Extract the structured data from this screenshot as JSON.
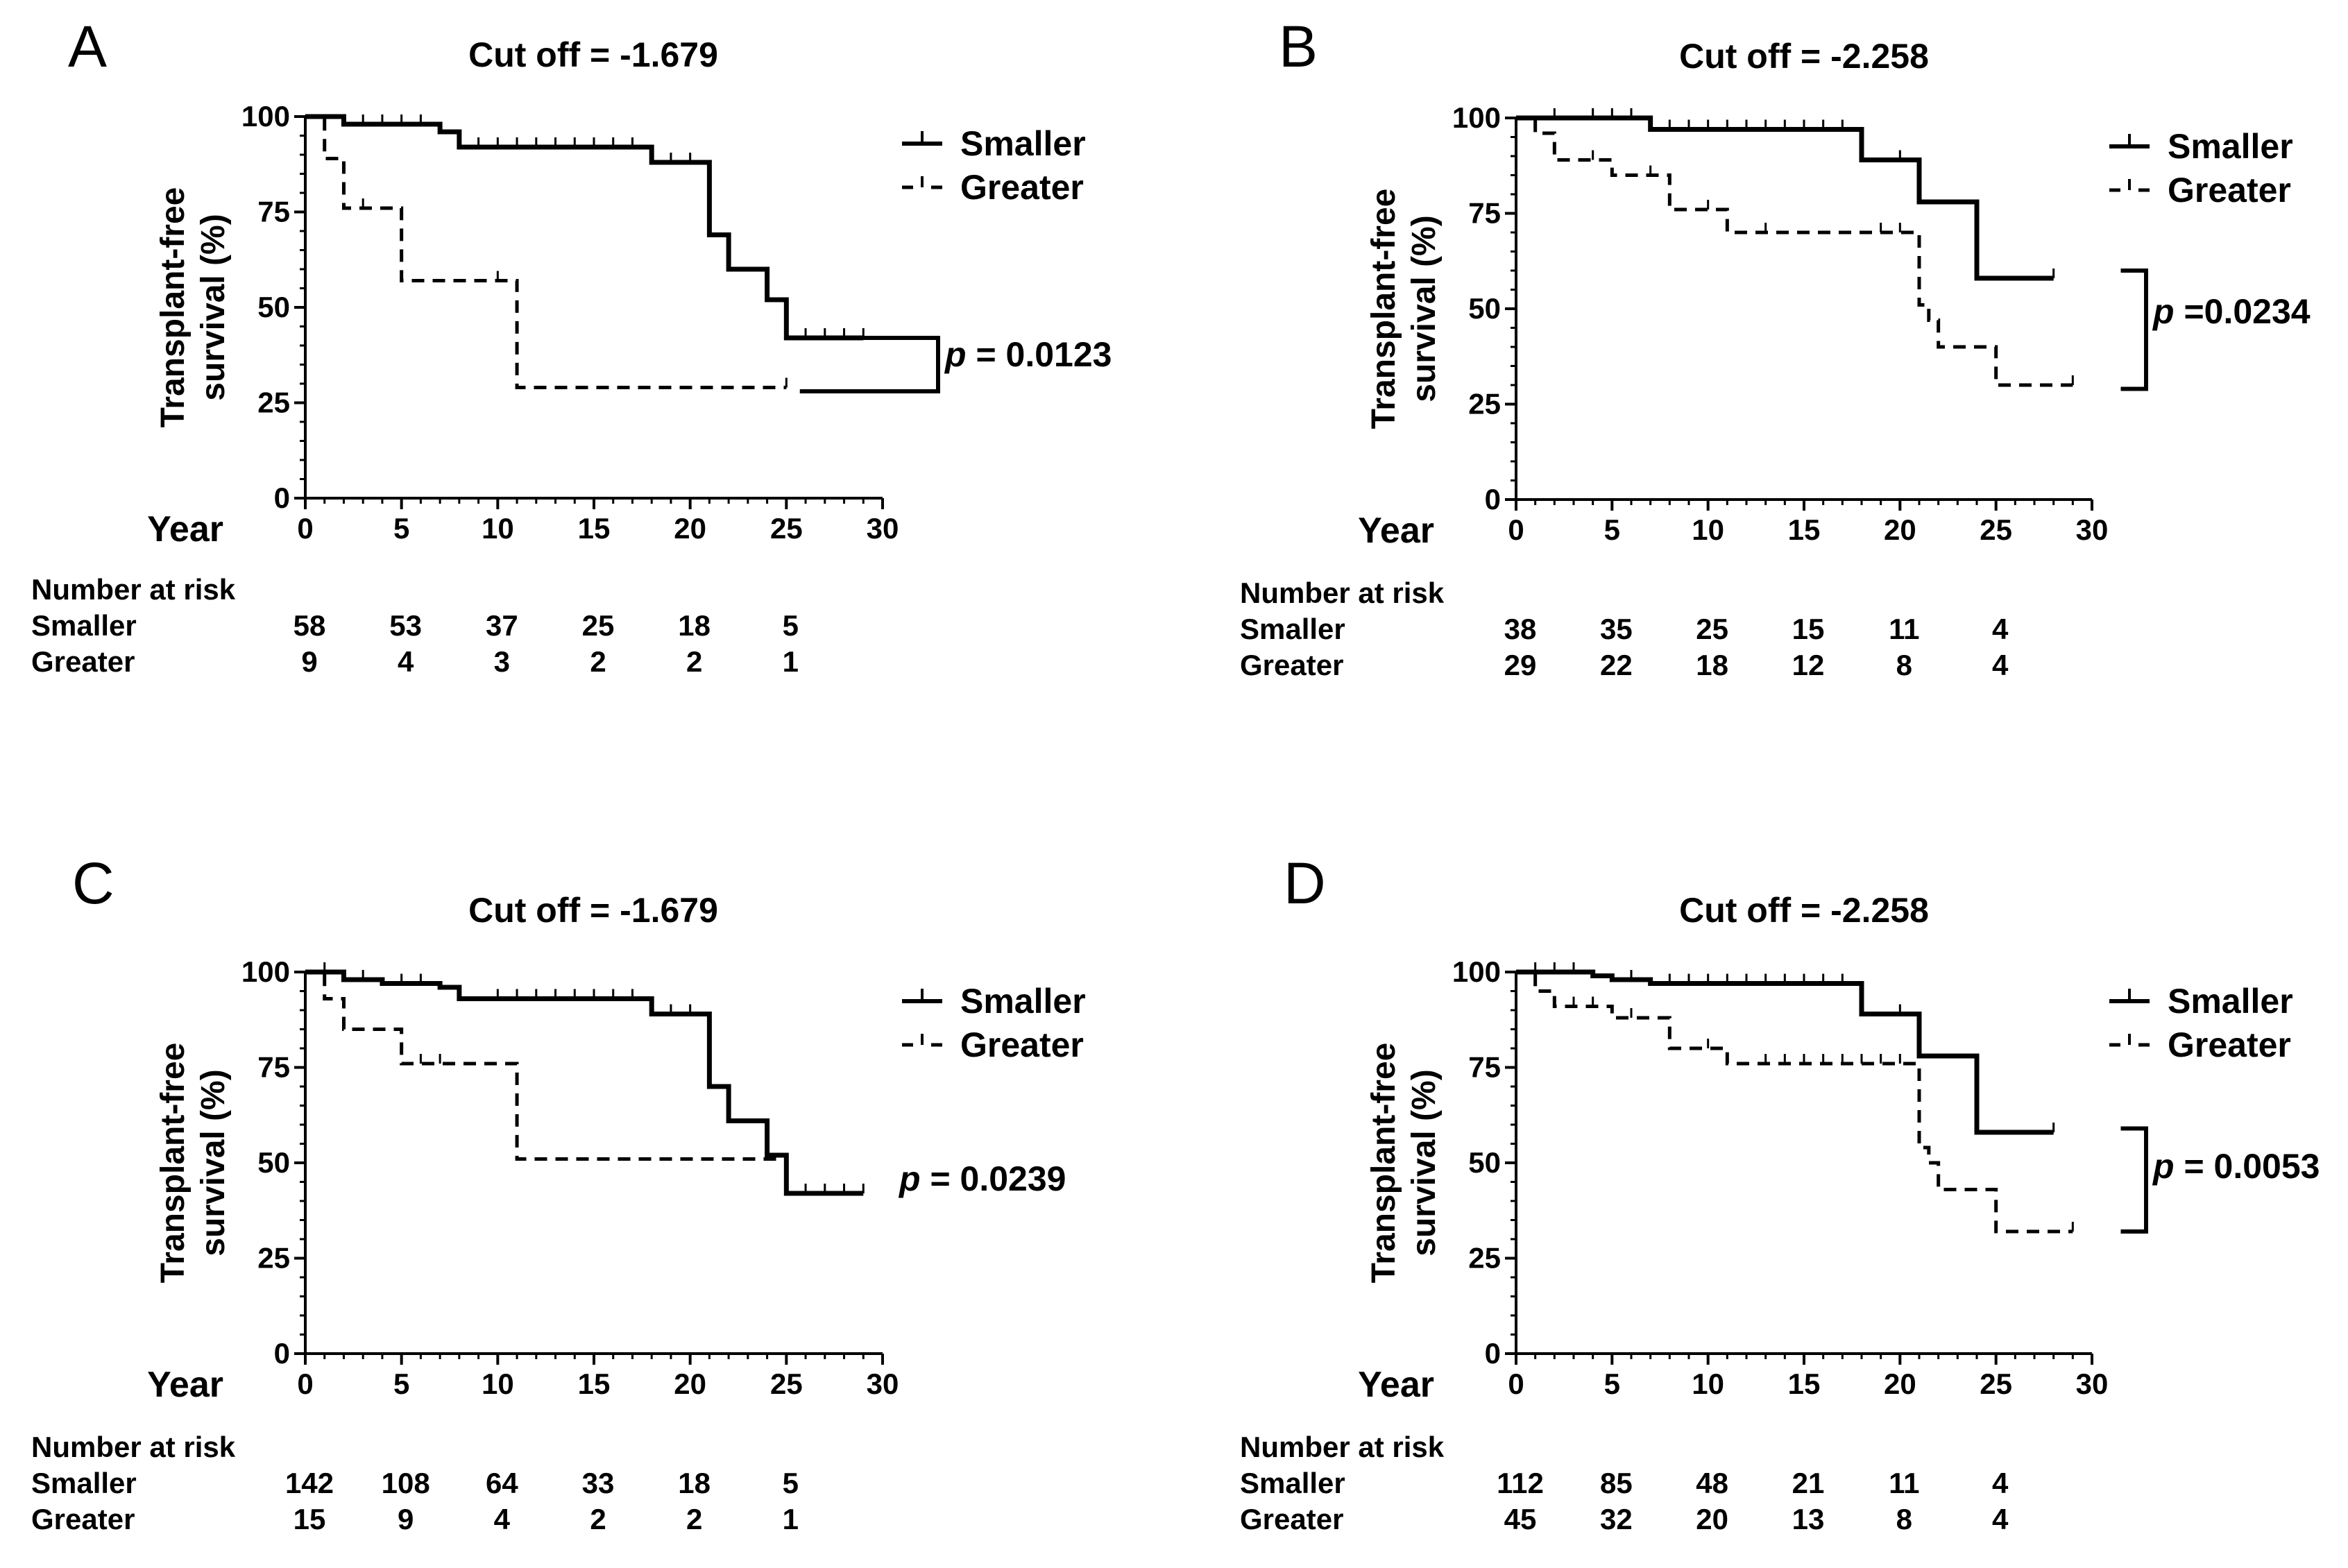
{
  "chart_data": [
    {
      "panel": "A",
      "type": "line",
      "title": "Cut off = -1.679",
      "ylabel_lines": [
        "Transplant-free",
        "survival (%)"
      ],
      "xlabel": "Year",
      "xlim": [
        0,
        30
      ],
      "ylim": [
        0,
        100
      ],
      "xticks": [
        0,
        5,
        10,
        15,
        20,
        25,
        30
      ],
      "yticks": [
        0,
        25,
        50,
        75,
        100
      ],
      "legend": [
        "Smaller",
        "Greater"
      ],
      "pvalue_prefix": "p",
      "pvalue": "= 0.0123",
      "bracket_y": [
        42,
        28
      ],
      "series": [
        {
          "name": "Smaller",
          "style": "solid",
          "x": [
            0,
            2,
            7,
            8,
            18,
            21,
            22,
            24,
            25,
            29
          ],
          "y": [
            100,
            98,
            96,
            92,
            88,
            69,
            60,
            52,
            42,
            42
          ],
          "censor": [
            3,
            4,
            5,
            6,
            9,
            10,
            11,
            12,
            13,
            14,
            15,
            16,
            17,
            19,
            20,
            26,
            27,
            28,
            29
          ]
        },
        {
          "name": "Greater",
          "style": "dashed",
          "x": [
            0,
            1,
            2,
            5,
            11,
            25
          ],
          "y": [
            100,
            89,
            76,
            57,
            29,
            29
          ],
          "censor": [
            3,
            10,
            25
          ]
        }
      ],
      "risk_table": {
        "header": "Number at risk",
        "times": [
          0,
          5,
          10,
          15,
          20,
          25
        ],
        "rows": [
          {
            "label": "Smaller",
            "values": [
              "58",
              "53",
              "37",
              "25",
              "18",
              "5"
            ]
          },
          {
            "label": "Greater",
            "values": [
              "9",
              "4",
              "3",
              "2",
              "2",
              "1"
            ]
          }
        ]
      }
    },
    {
      "panel": "B",
      "type": "line",
      "title": "Cut off = -2.258",
      "ylabel_lines": [
        "Transplant-free",
        "survival (%)"
      ],
      "xlabel": "Year",
      "xlim": [
        0,
        30
      ],
      "ylim": [
        0,
        100
      ],
      "xticks": [
        0,
        5,
        10,
        15,
        20,
        25,
        30
      ],
      "yticks": [
        0,
        25,
        50,
        75,
        100
      ],
      "legend": [
        "Smaller",
        "Greater"
      ],
      "pvalue_prefix": "p",
      "pvalue": "=0.0234",
      "bracket_y": [
        60,
        29
      ],
      "series": [
        {
          "name": "Smaller",
          "style": "solid",
          "x": [
            0,
            7,
            18,
            21,
            24,
            28
          ],
          "y": [
            100,
            97,
            89,
            78,
            58,
            58
          ],
          "censor": [
            2,
            4,
            5,
            6,
            8,
            9,
            10,
            11,
            12,
            13,
            14,
            15,
            16,
            17,
            20,
            28
          ]
        },
        {
          "name": "Greater",
          "style": "dashed",
          "x": [
            0,
            1,
            2,
            5,
            8,
            11,
            21,
            21.5,
            22,
            25,
            29
          ],
          "y": [
            100,
            96,
            89,
            85,
            76,
            70,
            51,
            47,
            40,
            30,
            30
          ],
          "censor": [
            4,
            7,
            10,
            13,
            19,
            20,
            29
          ]
        }
      ],
      "risk_table": {
        "header": "Number at risk",
        "times": [
          0,
          5,
          10,
          15,
          20,
          25
        ],
        "rows": [
          {
            "label": "Smaller",
            "values": [
              "38",
              "35",
              "25",
              "15",
              "11",
              "4"
            ]
          },
          {
            "label": "Greater",
            "values": [
              "29",
              "22",
              "18",
              "12",
              "8",
              "4"
            ]
          }
        ]
      }
    },
    {
      "panel": "C",
      "type": "line",
      "title": "Cut off = -1.679",
      "ylabel_lines": [
        "Transplant-free",
        "survival (%)"
      ],
      "xlabel": "Year",
      "xlim": [
        0,
        30
      ],
      "ylim": [
        0,
        100
      ],
      "xticks": [
        0,
        5,
        10,
        15,
        20,
        25,
        30
      ],
      "yticks": [
        0,
        25,
        50,
        75,
        100
      ],
      "legend": [
        "Smaller",
        "Greater"
      ],
      "pvalue_prefix": "p",
      "pvalue": "= 0.0239",
      "bracket_y": [],
      "series": [
        {
          "name": "Smaller",
          "style": "solid",
          "x": [
            0,
            2,
            4,
            7,
            8,
            18,
            21,
            22,
            24,
            25,
            29
          ],
          "y": [
            100,
            98,
            97,
            96,
            93,
            89,
            70,
            61,
            52,
            42,
            42
          ],
          "censor": [
            1,
            3,
            5,
            6,
            10,
            11,
            12,
            13,
            14,
            15,
            16,
            17,
            19,
            20,
            26,
            27,
            28,
            29
          ]
        },
        {
          "name": "Greater",
          "style": "dashed",
          "x": [
            0,
            1,
            2,
            5,
            11,
            25
          ],
          "y": [
            100,
            93,
            85,
            76,
            51,
            51
          ],
          "censor": [
            6,
            7,
            24
          ]
        }
      ],
      "risk_table": {
        "header": "Number at risk",
        "times": [
          0,
          5,
          10,
          15,
          20,
          25
        ],
        "rows": [
          {
            "label": "Smaller",
            "values": [
              "142",
              "108",
              "64",
              "33",
              "18",
              "5"
            ]
          },
          {
            "label": "Greater",
            "values": [
              "15",
              "9",
              "4",
              "2",
              "2",
              "1"
            ]
          }
        ]
      }
    },
    {
      "panel": "D",
      "type": "line",
      "title": "Cut off = -2.258",
      "ylabel_lines": [
        "Transplant-free",
        "survival (%)"
      ],
      "xlabel": "Year",
      "xlim": [
        0,
        30
      ],
      "ylim": [
        0,
        100
      ],
      "xticks": [
        0,
        5,
        10,
        15,
        20,
        25,
        30
      ],
      "yticks": [
        0,
        25,
        50,
        75,
        100
      ],
      "legend": [
        "Smaller",
        "Greater"
      ],
      "pvalue_prefix": "p",
      "pvalue": "= 0.0053",
      "bracket_y": [
        59,
        32
      ],
      "series": [
        {
          "name": "Smaller",
          "style": "solid",
          "x": [
            0,
            4,
            5,
            7,
            18,
            21,
            24,
            28
          ],
          "y": [
            100,
            99,
            98,
            97,
            89,
            78,
            58,
            58
          ],
          "censor": [
            1,
            2,
            3,
            6,
            8,
            9,
            10,
            11,
            12,
            13,
            14,
            15,
            16,
            17,
            20,
            28
          ]
        },
        {
          "name": "Greater",
          "style": "dashed",
          "x": [
            0,
            1,
            2,
            5,
            8,
            11,
            21,
            21.5,
            22,
            25,
            29
          ],
          "y": [
            100,
            95,
            91,
            88,
            80,
            76,
            54,
            50,
            43,
            32,
            32
          ],
          "censor": [
            3,
            4,
            6,
            10,
            13,
            14,
            15,
            16,
            17,
            18,
            19,
            20,
            29
          ]
        }
      ],
      "risk_table": {
        "header": "Number at risk",
        "times": [
          0,
          5,
          10,
          15,
          20,
          25
        ],
        "rows": [
          {
            "label": "Smaller",
            "values": [
              "112",
              "85",
              "48",
              "21",
              "11",
              "4"
            ]
          },
          {
            "label": "Greater",
            "values": [
              "45",
              "32",
              "20",
              "13",
              "8",
              "4"
            ]
          }
        ]
      }
    }
  ]
}
